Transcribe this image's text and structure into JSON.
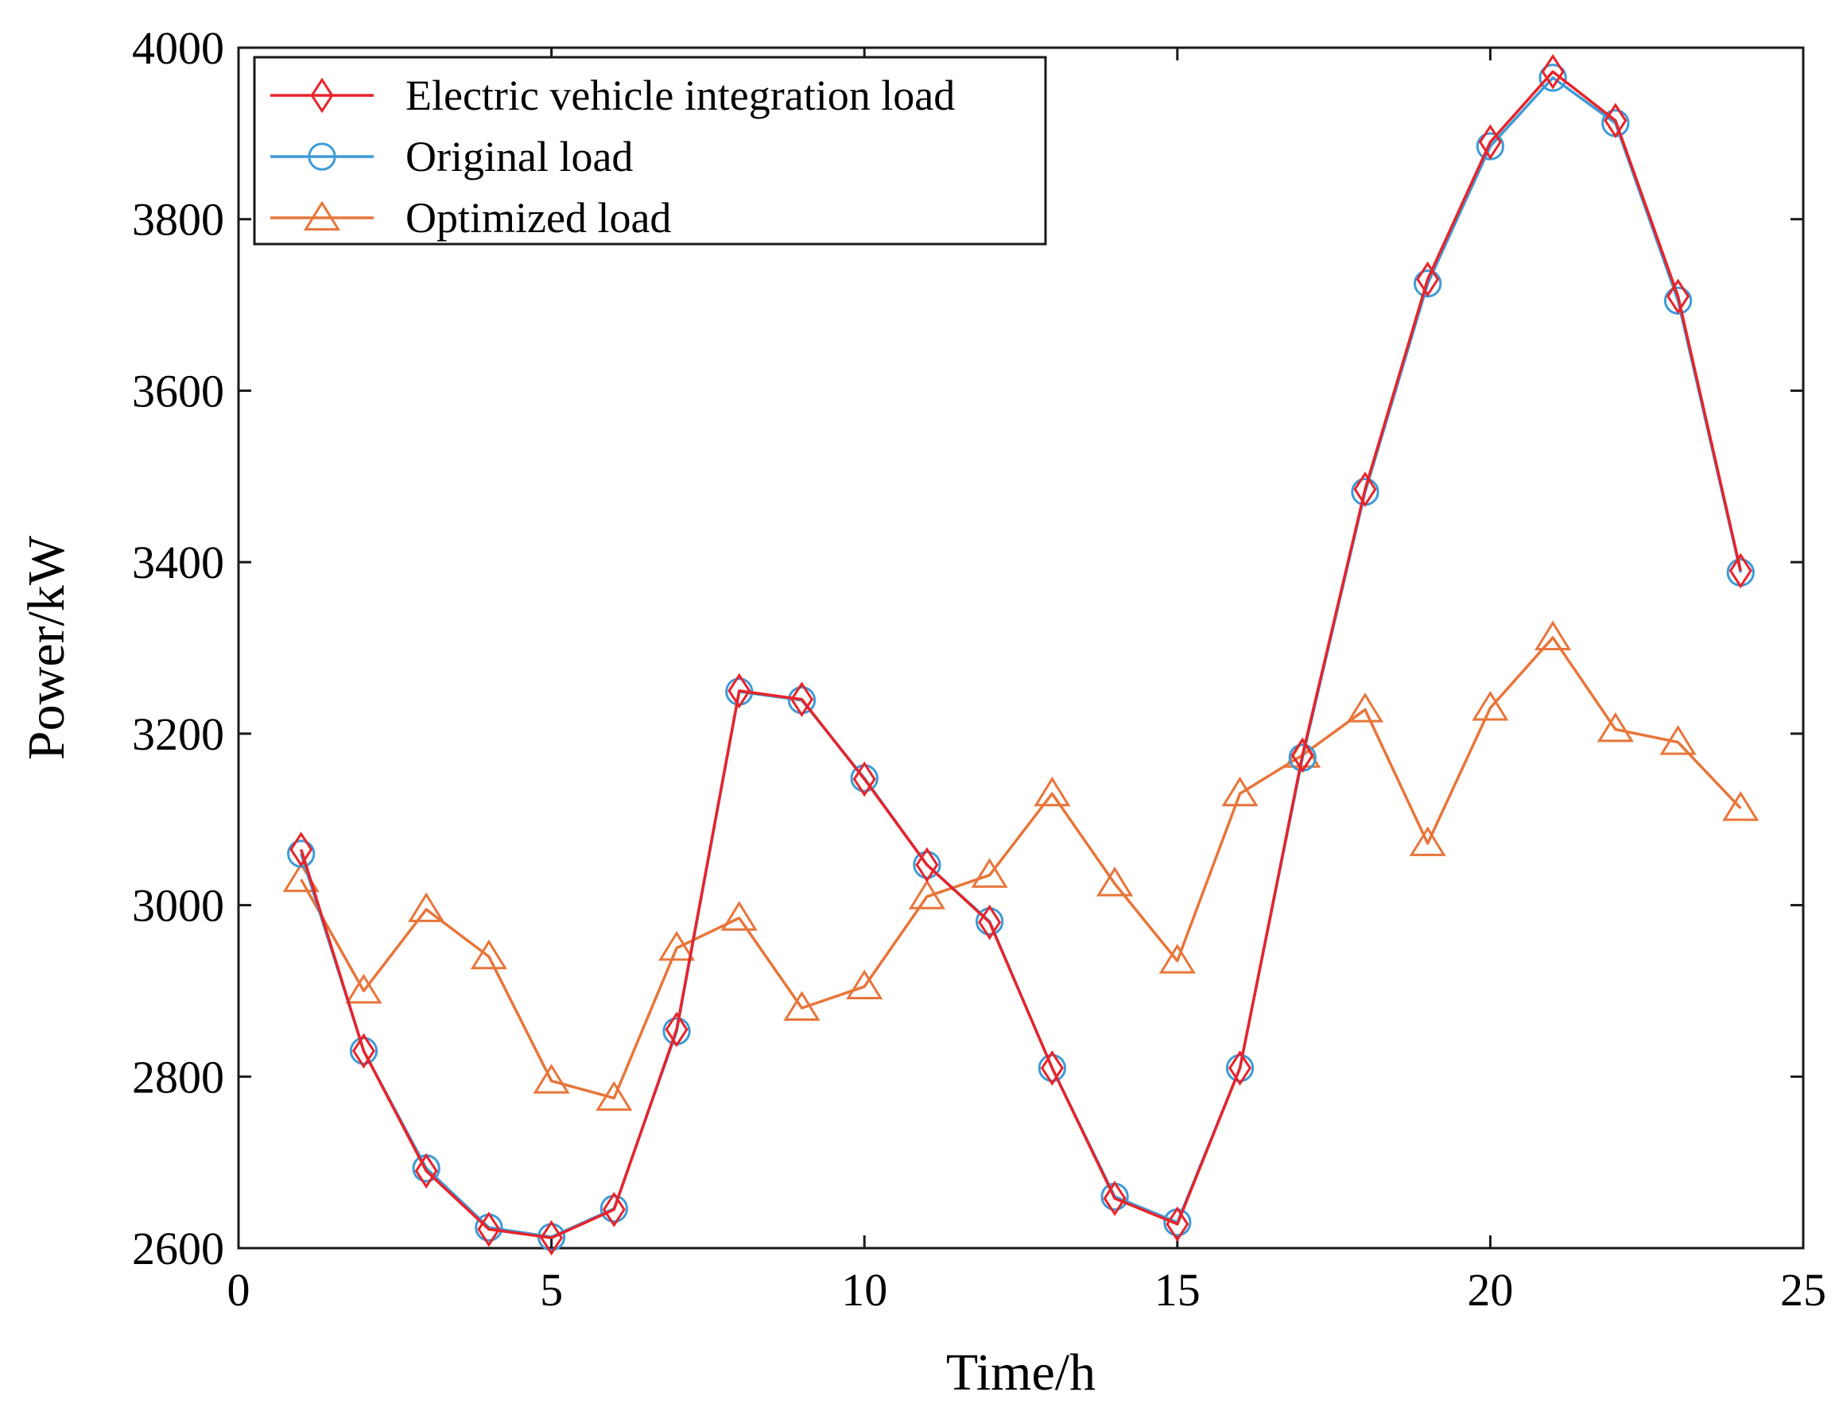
{
  "chart_data": {
    "type": "line",
    "title": "",
    "xlabel": "Time/h",
    "ylabel": "Power/kW",
    "xlim": [
      0,
      25
    ],
    "ylim": [
      2600,
      4000
    ],
    "xticks": [
      0,
      5,
      10,
      15,
      20,
      25
    ],
    "yticks": [
      2600,
      2800,
      3000,
      3200,
      3400,
      3600,
      3800,
      4000
    ],
    "grid": false,
    "legend_position": "top-left",
    "x": [
      1,
      2,
      3,
      4,
      5,
      6,
      7,
      8,
      9,
      10,
      11,
      12,
      13,
      14,
      15,
      16,
      17,
      18,
      19,
      20,
      21,
      22,
      23,
      24
    ],
    "series": [
      {
        "name": "Electric vehicle integration load",
        "color": "#e8232a",
        "marker": "diamond",
        "values": [
          3065,
          2830,
          2690,
          2622,
          2612,
          2645,
          2855,
          3250,
          3240,
          3147,
          3047,
          2980,
          2810,
          2658,
          2628,
          2810,
          3175,
          3485,
          3730,
          3890,
          3972,
          3915,
          3710,
          3390
        ]
      },
      {
        "name": "Original load",
        "color": "#3d9bd6",
        "marker": "circle",
        "values": [
          3060,
          2830,
          2693,
          2624,
          2613,
          2646,
          2853,
          3249,
          3239,
          3148,
          3047,
          2981,
          2810,
          2660,
          2630,
          2810,
          3172,
          3482,
          3725,
          3885,
          3965,
          3912,
          3705,
          3388
        ]
      },
      {
        "name": "Optimized load",
        "color": "#e8753a",
        "marker": "triangle",
        "values": [
          3030,
          2900,
          2995,
          2940,
          2795,
          2775,
          2950,
          2985,
          2880,
          2905,
          3010,
          3035,
          3130,
          3025,
          2935,
          3130,
          3175,
          3228,
          3072,
          3230,
          3312,
          3205,
          3190,
          3113
        ]
      }
    ]
  }
}
